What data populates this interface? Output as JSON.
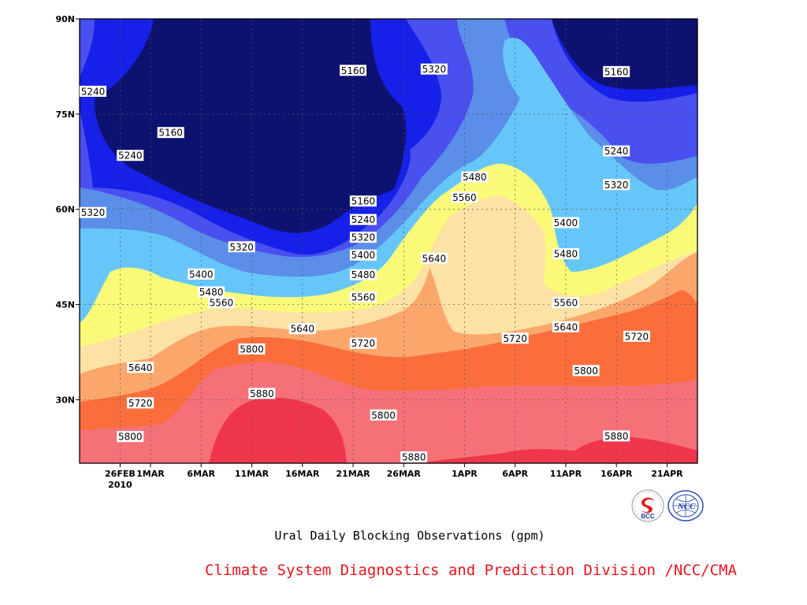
{
  "chart_data": {
    "type": "contour",
    "title": "Ural Daily Blocking Observations (gpm)",
    "credit": "Climate System Diagnostics and Prediction Division /NCC/CMA",
    "logos": {
      "left_text": "BCC",
      "right_text": "NCC"
    },
    "xlim": [
      "2010-02-22",
      "2010-04-24"
    ],
    "ylim": [
      20,
      90
    ],
    "x_ticks": [
      {
        "label": "26FEB",
        "date": "2010-02-26"
      },
      {
        "label": "1MAR",
        "date": "2010-03-01"
      },
      {
        "label": "6MAR",
        "date": "2010-03-06"
      },
      {
        "label": "11MAR",
        "date": "2010-03-11"
      },
      {
        "label": "16MAR",
        "date": "2010-03-16"
      },
      {
        "label": "21MAR",
        "date": "2010-03-21"
      },
      {
        "label": "26MAR",
        "date": "2010-03-26"
      },
      {
        "label": "1APR",
        "date": "2010-04-01"
      },
      {
        "label": "6APR",
        "date": "2010-04-06"
      },
      {
        "label": "11APR",
        "date": "2010-04-11"
      },
      {
        "label": "16APR",
        "date": "2010-04-16"
      },
      {
        "label": "21APR",
        "date": "2010-04-21"
      }
    ],
    "year_label": "2010",
    "y_ticks": [
      {
        "label": "30N",
        "value": 30
      },
      {
        "label": "45N",
        "value": 45
      },
      {
        "label": "60N",
        "value": 60
      },
      {
        "label": "75N",
        "value": 75
      },
      {
        "label": "90N",
        "value": 90
      }
    ],
    "grid": true,
    "contour_levels": [
      5160,
      5240,
      5320,
      5400,
      5480,
      5560,
      5640,
      5720,
      5800,
      5880
    ],
    "fill_colors": {
      "below_5160": "#0d1270",
      "5160_5240": "#1620e8",
      "5240_5320": "#4a4ff0",
      "5320_5400": "#5a8ee8",
      "5400_5480": "#66c6fa",
      "5480_5560": "#fafa78",
      "5560_5640": "#fce2a4",
      "5640_5720": "#fba76c",
      "5720_5800": "#fb6e3c",
      "5800_5880": "#f67078",
      "above_5880": "#f0364c"
    },
    "contour_labels": [
      {
        "text": "5240",
        "date": "2010-02-22",
        "lat": 78.6
      },
      {
        "text": "5160",
        "date": "2010-03-21",
        "lat": 81.9
      },
      {
        "text": "5320",
        "date": "2010-03-29",
        "lat": 82.1
      },
      {
        "text": "5160",
        "date": "2010-04-16",
        "lat": 81.7
      },
      {
        "text": "5160",
        "date": "2010-03-03",
        "lat": 72.1
      },
      {
        "text": "5240",
        "date": "2010-02-27",
        "lat": 68.5
      },
      {
        "text": "5240",
        "date": "2010-04-16",
        "lat": 69.2
      },
      {
        "text": "5480",
        "date": "2010-04-02",
        "lat": 65.1
      },
      {
        "text": "5320",
        "date": "2010-04-16",
        "lat": 63.9
      },
      {
        "text": "5560",
        "date": "2010-04-01",
        "lat": 61.9
      },
      {
        "text": "5160",
        "date": "2010-03-22",
        "lat": 61.3
      },
      {
        "text": "5320",
        "date": "2010-02-23",
        "lat": 59.5
      },
      {
        "text": "5240",
        "date": "2010-03-22",
        "lat": 58.4
      },
      {
        "text": "5400",
        "date": "2010-04-11",
        "lat": 57.9
      },
      {
        "text": "5320",
        "date": "2010-03-22",
        "lat": 55.6
      },
      {
        "text": "5320",
        "date": "2010-03-10",
        "lat": 54.1
      },
      {
        "text": "5400",
        "date": "2010-03-22",
        "lat": 52.8
      },
      {
        "text": "5480",
        "date": "2010-04-11",
        "lat": 53.0
      },
      {
        "text": "5640",
        "date": "2010-03-29",
        "lat": 52.3
      },
      {
        "text": "5400",
        "date": "2010-03-06",
        "lat": 49.8
      },
      {
        "text": "5480",
        "date": "2010-03-22",
        "lat": 49.7
      },
      {
        "text": "5480",
        "date": "2010-03-07",
        "lat": 47.0
      },
      {
        "text": "5560",
        "date": "2010-03-22",
        "lat": 46.2
      },
      {
        "text": "5560",
        "date": "2010-03-08",
        "lat": 45.3
      },
      {
        "text": "5560",
        "date": "2010-04-11",
        "lat": 45.3
      },
      {
        "text": "5640",
        "date": "2010-03-16",
        "lat": 41.2
      },
      {
        "text": "5640",
        "date": "2010-04-11",
        "lat": 41.5
      },
      {
        "text": "5720",
        "date": "2010-04-06",
        "lat": 39.7
      },
      {
        "text": "5720",
        "date": "2010-04-18",
        "lat": 40.0
      },
      {
        "text": "5720",
        "date": "2010-03-22",
        "lat": 38.9
      },
      {
        "text": "5800",
        "date": "2010-03-11",
        "lat": 38.0
      },
      {
        "text": "5640",
        "date": "2010-02-28",
        "lat": 35.1
      },
      {
        "text": "5800",
        "date": "2010-04-13",
        "lat": 34.6
      },
      {
        "text": "5880",
        "date": "2010-03-12",
        "lat": 31.0
      },
      {
        "text": "5720",
        "date": "2010-02-28",
        "lat": 29.5
      },
      {
        "text": "5800",
        "date": "2010-03-24",
        "lat": 27.6
      },
      {
        "text": "5800",
        "date": "2010-02-27",
        "lat": 24.2
      },
      {
        "text": "5880",
        "date": "2010-04-16",
        "lat": 24.3
      },
      {
        "text": "5880",
        "date": "2010-03-27",
        "lat": 21.0
      }
    ]
  }
}
